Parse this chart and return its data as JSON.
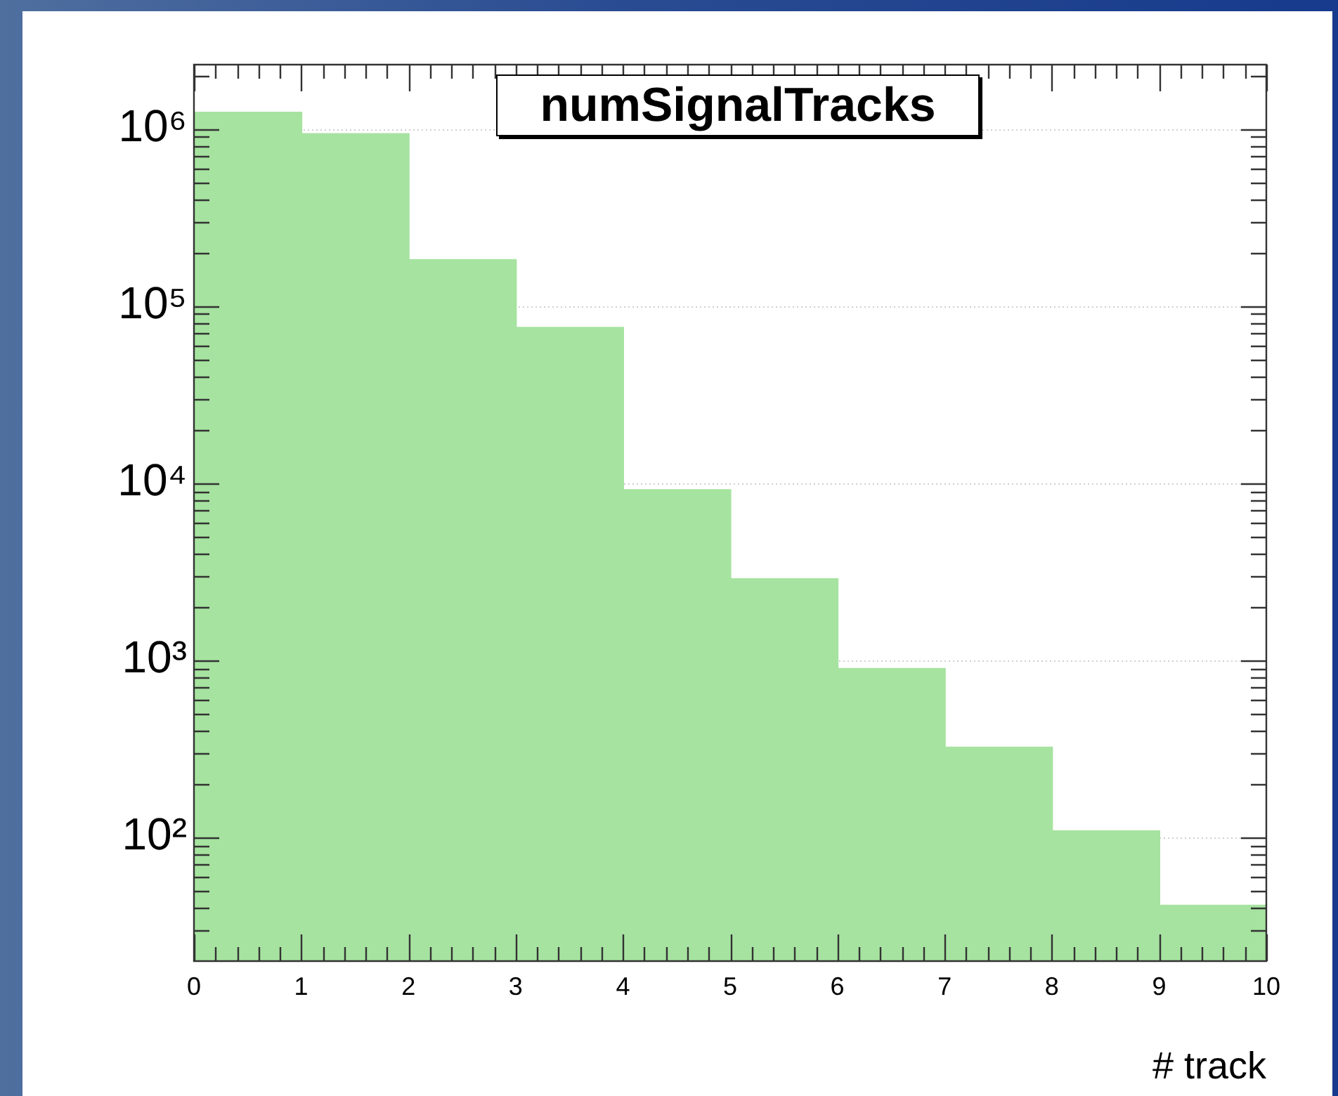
{
  "chart_data": {
    "type": "histogram",
    "title": "numSignalTracks",
    "xlabel": "# track",
    "bins": [
      0,
      1,
      2,
      3,
      4,
      5,
      6,
      7,
      8,
      9,
      10
    ],
    "values": [
      1230000,
      930000,
      181000,
      75000,
      9100,
      2860,
      890,
      320,
      108,
      41
    ],
    "color": "#a6e3a0",
    "log": "y",
    "grid": "y",
    "xlim": [
      0,
      10
    ],
    "ylim": [
      20,
      2300000
    ],
    "xticks": [
      0,
      {
        "value": 0.2,
        "label": null
      },
      {
        "value": 0.4,
        "label": null
      },
      {
        "value": 0.6,
        "label": null
      },
      {
        "value": 0.8,
        "label": null
      },
      1,
      {
        "value": 1.2,
        "label": null
      },
      {
        "value": 1.4,
        "label": null
      },
      {
        "value": 1.6,
        "label": null
      },
      {
        "value": 1.8,
        "label": null
      },
      2,
      {
        "value": 2.2,
        "label": null
      },
      {
        "value": 2.4,
        "label": null
      },
      {
        "value": 2.6,
        "label": null
      },
      {
        "value": 2.8,
        "label": null
      },
      3,
      {
        "value": 3.2,
        "label": null
      },
      {
        "value": 3.4,
        "label": null
      },
      {
        "value": 3.6,
        "label": null
      },
      {
        "value": 3.8,
        "label": null
      },
      4,
      {
        "value": 4.2,
        "label": null
      },
      {
        "value": 4.4,
        "label": null
      },
      {
        "value": 4.6,
        "label": null
      },
      {
        "value": 4.8,
        "label": null
      },
      5,
      {
        "value": 5.2,
        "label": null
      },
      {
        "value": 5.4,
        "label": null
      },
      {
        "value": 5.6,
        "label": null
      },
      {
        "value": 5.8,
        "label": null
      },
      6,
      {
        "value": 6.2,
        "label": null
      },
      {
        "value": 6.4,
        "label": null
      },
      {
        "value": 6.6,
        "label": null
      },
      {
        "value": 6.8,
        "label": null
      },
      7,
      {
        "value": 7.2,
        "label": null
      },
      {
        "value": 7.4,
        "label": null
      },
      {
        "value": 7.6,
        "label": null
      },
      {
        "value": 7.8,
        "label": null
      },
      8,
      {
        "value": 8.2,
        "label": null
      },
      {
        "value": 8.4,
        "label": null
      },
      {
        "value": 8.6,
        "label": null
      },
      {
        "value": 8.8,
        "label": null
      },
      9,
      {
        "value": 9.2,
        "label": null
      },
      {
        "value": 9.4,
        "label": null
      },
      {
        "value": 9.6,
        "label": null
      },
      {
        "value": 9.8,
        "label": null
      },
      10
    ],
    "yticks": [
      {
        "value": 30,
        "label": null
      },
      {
        "value": 40,
        "label": null
      },
      {
        "value": 50,
        "label": null
      },
      {
        "value": 60,
        "label": null
      },
      {
        "value": 70,
        "label": null
      },
      {
        "value": 80,
        "label": null
      },
      {
        "value": 90,
        "label": null
      },
      {
        "value": 100,
        "label": "10²"
      },
      {
        "value": 200,
        "label": null
      },
      {
        "value": 300,
        "label": null
      },
      {
        "value": 400,
        "label": null
      },
      {
        "value": 500,
        "label": null
      },
      {
        "value": 600,
        "label": null
      },
      {
        "value": 700,
        "label": null
      },
      {
        "value": 800,
        "label": null
      },
      {
        "value": 900,
        "label": null
      },
      {
        "value": 1000,
        "label": "10³"
      },
      {
        "value": 2000,
        "label": null
      },
      {
        "value": 3000,
        "label": null
      },
      {
        "value": 4000,
        "label": null
      },
      {
        "value": 5000,
        "label": null
      },
      {
        "value": 6000,
        "label": null
      },
      {
        "value": 7000,
        "label": null
      },
      {
        "value": 8000,
        "label": null
      },
      {
        "value": 9000,
        "label": null
      },
      {
        "value": 10000,
        "label": "10⁴"
      },
      {
        "value": 20000,
        "label": null
      },
      {
        "value": 30000,
        "label": null
      },
      {
        "value": 40000,
        "label": null
      },
      {
        "value": 50000,
        "label": null
      },
      {
        "value": 60000,
        "label": null
      },
      {
        "value": 70000,
        "label": null
      },
      {
        "value": 80000,
        "label": null
      },
      {
        "value": 90000,
        "label": null
      },
      {
        "value": 100000,
        "label": "10⁵"
      },
      {
        "value": 200000,
        "label": null
      },
      {
        "value": 300000,
        "label": null
      },
      {
        "value": 400000,
        "label": null
      },
      {
        "value": 500000,
        "label": null
      },
      {
        "value": 600000,
        "label": null
      },
      {
        "value": 700000,
        "label": null
      },
      {
        "value": 800000,
        "label": null
      },
      {
        "value": 900000,
        "label": null
      },
      {
        "value": 1000000,
        "label": "10⁶"
      },
      {
        "value": 2000000,
        "label": null
      }
    ]
  }
}
